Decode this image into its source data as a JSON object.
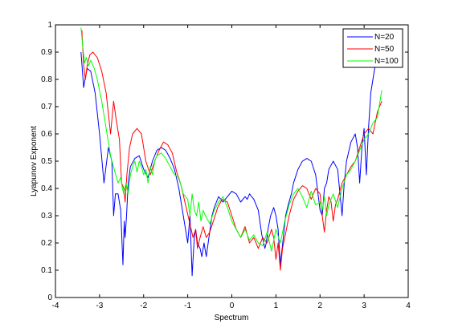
{
  "figure": {
    "chart_data": {
      "type": "line",
      "title": "",
      "xlabel": "Spectrum",
      "ylabel": "Lyapunov Exponent",
      "xlim": [
        -4,
        4
      ],
      "ylim": [
        0,
        1
      ],
      "xticks": [
        -4,
        -3,
        -2,
        -1,
        0,
        1,
        2,
        3,
        4
      ],
      "xtick_labels": [
        "-4",
        "-3",
        "-2",
        "-1",
        "0",
        "1",
        "2",
        "3",
        "4"
      ],
      "yticks": [
        0,
        0.1,
        0.2,
        0.3,
        0.4,
        0.5,
        0.6,
        0.7,
        0.8,
        0.9,
        1
      ],
      "ytick_labels": [
        "0",
        "0.1",
        "0.2",
        "0.3",
        "0.4",
        "0.5",
        "0.6",
        "0.7",
        "0.8",
        "0.9",
        "1"
      ],
      "grid": false,
      "legend": "top-right",
      "series": [
        {
          "name": "N=20",
          "color": "#0000ff",
          "x": [
            -3.42,
            -3.36,
            -3.33,
            -3.28,
            -3.2,
            -3.1,
            -3.0,
            -2.9,
            -2.8,
            -2.72,
            -2.68,
            -2.64,
            -2.58,
            -2.52,
            -2.47,
            -2.44,
            -2.42,
            -2.39,
            -2.35,
            -2.3,
            -2.2,
            -2.1,
            -2.0,
            -1.9,
            -1.8,
            -1.7,
            -1.6,
            -1.5,
            -1.4,
            -1.3,
            -1.2,
            -1.1,
            -1.0,
            -0.95,
            -0.9,
            -0.87,
            -0.85,
            -0.82,
            -0.78,
            -0.72,
            -0.68,
            -0.63,
            -0.58,
            -0.52,
            -0.45,
            -0.4,
            -0.3,
            -0.2,
            -0.1,
            0.0,
            0.1,
            0.2,
            0.3,
            0.35,
            0.4,
            0.5,
            0.6,
            0.68,
            0.75,
            0.78,
            0.82,
            0.88,
            0.95,
            1.0,
            1.05,
            1.1,
            1.14,
            1.18,
            1.22,
            1.28,
            1.35,
            1.4,
            1.5,
            1.6,
            1.7,
            1.8,
            1.9,
            2.0,
            2.05,
            2.1,
            2.15,
            2.2,
            2.3,
            2.4,
            2.5,
            2.55,
            2.6,
            2.7,
            2.8,
            2.85,
            2.9,
            2.95,
            3.0,
            3.05,
            3.1,
            3.15,
            3.2,
            3.25,
            3.3
          ],
          "y": [
            0.9,
            0.77,
            0.8,
            0.84,
            0.83,
            0.75,
            0.6,
            0.42,
            0.55,
            0.5,
            0.3,
            0.38,
            0.38,
            0.32,
            0.12,
            0.28,
            0.22,
            0.29,
            0.42,
            0.48,
            0.51,
            0.52,
            0.47,
            0.44,
            0.5,
            0.54,
            0.55,
            0.54,
            0.51,
            0.47,
            0.4,
            0.3,
            0.2,
            0.3,
            0.08,
            0.17,
            0.22,
            0.25,
            0.2,
            0.18,
            0.15,
            0.2,
            0.15,
            0.22,
            0.3,
            0.33,
            0.37,
            0.35,
            0.37,
            0.39,
            0.38,
            0.35,
            0.37,
            0.36,
            0.38,
            0.36,
            0.32,
            0.23,
            0.18,
            0.2,
            0.25,
            0.3,
            0.33,
            0.3,
            0.25,
            0.12,
            0.18,
            0.24,
            0.3,
            0.34,
            0.38,
            0.42,
            0.47,
            0.5,
            0.51,
            0.5,
            0.45,
            0.32,
            0.3,
            0.4,
            0.42,
            0.47,
            0.5,
            0.47,
            0.3,
            0.42,
            0.5,
            0.57,
            0.6,
            0.55,
            0.42,
            0.55,
            0.62,
            0.45,
            0.62,
            0.75,
            0.8,
            0.85,
            0.86
          ]
        },
        {
          "name": "N=50",
          "color": "#ff0000",
          "x": [
            -3.4,
            -3.36,
            -3.32,
            -3.28,
            -3.22,
            -3.15,
            -3.05,
            -2.95,
            -2.85,
            -2.75,
            -2.68,
            -2.62,
            -2.55,
            -2.5,
            -2.45,
            -2.42,
            -2.38,
            -2.32,
            -2.25,
            -2.15,
            -2.05,
            -1.95,
            -1.85,
            -1.75,
            -1.65,
            -1.55,
            -1.45,
            -1.35,
            -1.25,
            -1.15,
            -1.05,
            -0.95,
            -0.88,
            -0.82,
            -0.78,
            -0.72,
            -0.65,
            -0.58,
            -0.5,
            -0.42,
            -0.32,
            -0.22,
            -0.1,
            0.0,
            0.1,
            0.2,
            0.3,
            0.4,
            0.5,
            0.6,
            0.7,
            0.8,
            0.9,
            0.95,
            1.0,
            1.05,
            1.1,
            1.15,
            1.2,
            1.3,
            1.4,
            1.5,
            1.6,
            1.7,
            1.8,
            1.9,
            2.0,
            2.05,
            2.1,
            2.15,
            2.2,
            2.25,
            2.3,
            2.35,
            2.4,
            2.5,
            2.6,
            2.7,
            2.8,
            2.9,
            3.0,
            3.1,
            3.2,
            3.3,
            3.4
          ],
          "y": [
            0.98,
            0.85,
            0.8,
            0.85,
            0.89,
            0.9,
            0.88,
            0.83,
            0.75,
            0.6,
            0.72,
            0.65,
            0.58,
            0.42,
            0.4,
            0.35,
            0.45,
            0.55,
            0.6,
            0.62,
            0.6,
            0.5,
            0.45,
            0.5,
            0.54,
            0.57,
            0.56,
            0.53,
            0.46,
            0.41,
            0.34,
            0.27,
            0.22,
            0.25,
            0.18,
            0.22,
            0.26,
            0.22,
            0.24,
            0.28,
            0.33,
            0.36,
            0.35,
            0.3,
            0.25,
            0.22,
            0.26,
            0.2,
            0.22,
            0.18,
            0.22,
            0.2,
            0.25,
            0.22,
            0.14,
            0.2,
            0.1,
            0.18,
            0.22,
            0.3,
            0.36,
            0.39,
            0.41,
            0.4,
            0.36,
            0.4,
            0.38,
            0.3,
            0.24,
            0.32,
            0.37,
            0.35,
            0.28,
            0.34,
            0.36,
            0.42,
            0.45,
            0.48,
            0.5,
            0.55,
            0.6,
            0.62,
            0.6,
            0.68,
            0.72
          ]
        },
        {
          "name": "N=100",
          "color": "#00ff00",
          "x": [
            -3.42,
            -3.38,
            -3.34,
            -3.3,
            -3.25,
            -3.2,
            -3.12,
            -3.05,
            -2.95,
            -2.85,
            -2.75,
            -2.65,
            -2.58,
            -2.52,
            -2.48,
            -2.45,
            -2.4,
            -2.35,
            -2.3,
            -2.25,
            -2.2,
            -2.15,
            -2.1,
            -2.05,
            -2.0,
            -1.95,
            -1.9,
            -1.85,
            -1.8,
            -1.75,
            -1.7,
            -1.6,
            -1.5,
            -1.4,
            -1.3,
            -1.2,
            -1.1,
            -1.0,
            -0.95,
            -0.9,
            -0.85,
            -0.8,
            -0.75,
            -0.7,
            -0.65,
            -0.6,
            -0.5,
            -0.4,
            -0.3,
            -0.2,
            -0.1,
            0.0,
            0.1,
            0.2,
            0.3,
            0.4,
            0.5,
            0.6,
            0.7,
            0.8,
            0.9,
            1.0,
            1.1,
            1.2,
            1.3,
            1.4,
            1.5,
            1.6,
            1.7,
            1.8,
            1.9,
            2.0,
            2.05,
            2.1,
            2.15,
            2.2,
            2.3,
            2.4,
            2.5,
            2.6,
            2.7,
            2.8,
            2.9,
            3.0,
            3.1,
            3.2,
            3.3,
            3.4
          ],
          "y": [
            0.99,
            0.92,
            0.86,
            0.88,
            0.85,
            0.87,
            0.84,
            0.8,
            0.72,
            0.62,
            0.52,
            0.46,
            0.42,
            0.44,
            0.4,
            0.38,
            0.42,
            0.38,
            0.45,
            0.48,
            0.5,
            0.46,
            0.5,
            0.48,
            0.45,
            0.47,
            0.42,
            0.48,
            0.45,
            0.5,
            0.52,
            0.53,
            0.51,
            0.48,
            0.45,
            0.44,
            0.38,
            0.36,
            0.3,
            0.38,
            0.32,
            0.3,
            0.35,
            0.28,
            0.32,
            0.3,
            0.27,
            0.32,
            0.35,
            0.37,
            0.33,
            0.28,
            0.25,
            0.22,
            0.25,
            0.21,
            0.23,
            0.2,
            0.19,
            0.24,
            0.17,
            0.25,
            0.2,
            0.28,
            0.34,
            0.38,
            0.4,
            0.37,
            0.33,
            0.39,
            0.34,
            0.35,
            0.32,
            0.37,
            0.3,
            0.34,
            0.38,
            0.33,
            0.4,
            0.45,
            0.47,
            0.5,
            0.54,
            0.58,
            0.6,
            0.64,
            0.66,
            0.76
          ]
        }
      ]
    }
  }
}
